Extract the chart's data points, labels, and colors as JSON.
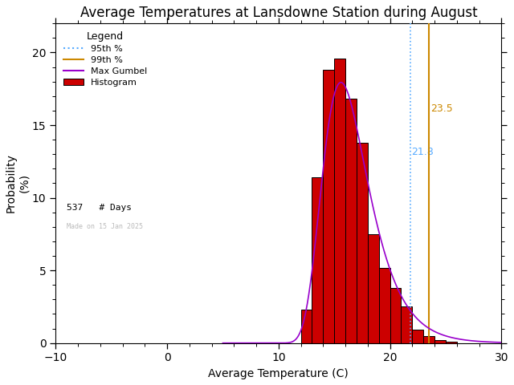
{
  "title": "Average Temperatures at Lansdowne Station during August",
  "xlabel": "Average Temperature (C)",
  "ylabel": "Probability\n(%)",
  "xlim": [
    -10,
    30
  ],
  "ylim": [
    0,
    22
  ],
  "yticks": [
    0,
    5,
    10,
    15,
    20
  ],
  "xticks": [
    -10,
    0,
    10,
    20,
    30
  ],
  "bar_left_edges": [
    12,
    13,
    14,
    15,
    16,
    17,
    18,
    19,
    20,
    21,
    22,
    23,
    24,
    25
  ],
  "bar_heights": [
    2.3,
    11.4,
    18.8,
    19.6,
    16.8,
    13.8,
    7.5,
    5.2,
    3.8,
    2.5,
    0.9,
    0.5,
    0.2,
    0.1
  ],
  "bar_color": "#cc0000",
  "bar_edgecolor": "#000000",
  "gumbel_mu": 15.6,
  "gumbel_beta": 2.05,
  "gumbel_color": "#9900cc",
  "p95_value": 21.8,
  "p95_color": "#55aaff",
  "p99_value": 23.5,
  "p99_color": "#cc8800",
  "p95_label": "21.8",
  "p99_label": "23.5",
  "n_days": 537,
  "made_on": "Made on 15 Jan 2025",
  "legend_title": "Legend",
  "background_color": "#ffffff",
  "title_fontsize": 12,
  "axis_fontsize": 10,
  "tick_fontsize": 10
}
